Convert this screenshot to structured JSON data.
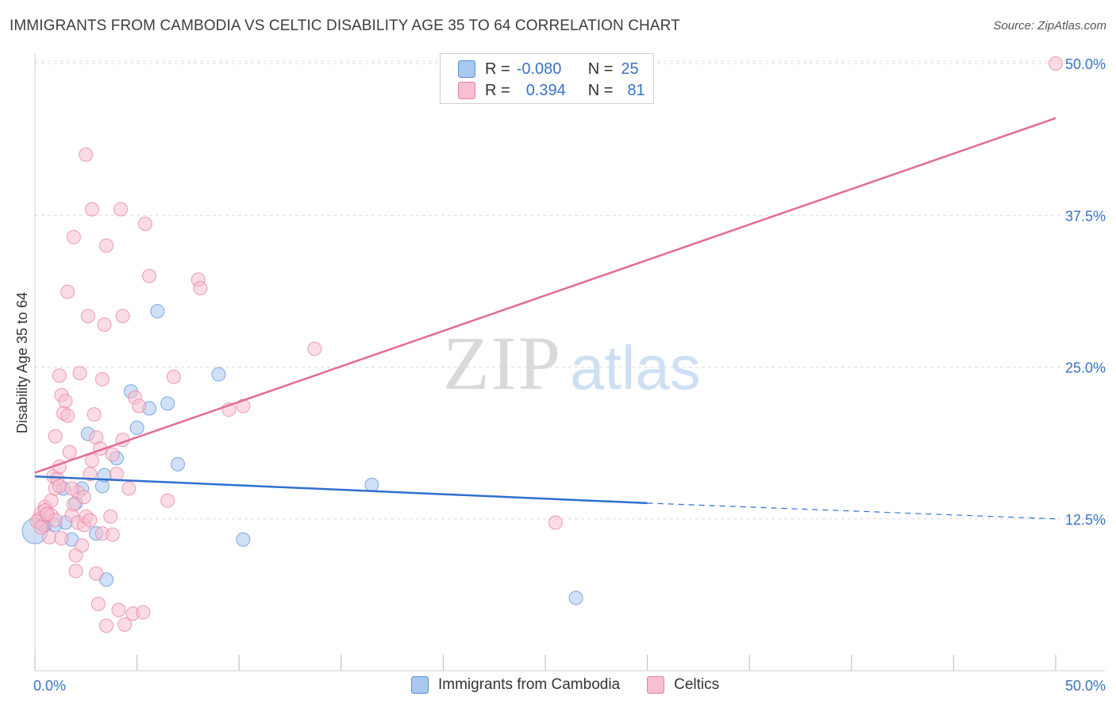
{
  "title": "IMMIGRANTS FROM CAMBODIA VS CELTIC DISABILITY AGE 35 TO 64 CORRELATION CHART",
  "source": "Source: ZipAtlas.com",
  "watermark": {
    "zip": "ZIP",
    "atlas": "atlas"
  },
  "stats_legend": {
    "rows": [
      {
        "r_label": "R =",
        "r_value": "-0.080",
        "n_label": "N =",
        "n_value": "25",
        "color": "#a9c8f0",
        "edge": "#5a8fd6"
      },
      {
        "r_label": "R =",
        "r_value": "0.394",
        "n_label": "N =",
        "n_value": "81",
        "color": "#f7bfd0",
        "edge": "#e67fa1"
      }
    ]
  },
  "bottom_legend": [
    {
      "label": "Immigrants from Cambodia",
      "color": "#a9c8f0",
      "edge": "#5a8fd6"
    },
    {
      "label": "Celtics",
      "color": "#f7bfd0",
      "edge": "#e67fa1"
    }
  ],
  "chart_data": {
    "type": "scatter",
    "title": "IMMIGRANTS FROM CAMBODIA VS CELTIC DISABILITY AGE 35 TO 64 CORRELATION CHART",
    "xlabel": "",
    "ylabel": "Disability Age 35 to 64",
    "xlim": [
      0,
      50
    ],
    "ylim": [
      0,
      50
    ],
    "x_tick_labels": [
      "0.0%",
      "50.0%"
    ],
    "y_ticks": [
      12.5,
      25.0,
      37.5,
      50.0
    ],
    "y_tick_labels": [
      "12.5%",
      "25.0%",
      "37.5%",
      "50.0%"
    ],
    "grid": true,
    "series": [
      {
        "name": "Immigrants from Cambodia",
        "color": "#5a8fd6",
        "fill": "#a9c8f0",
        "trend": {
          "x0": 0,
          "y0": 16.0,
          "x1": 30,
          "y1": 13.8,
          "dash_to": 50,
          "dash_y": 12.5
        },
        "points": [
          [
            0.0,
            11.5,
            1.6
          ],
          [
            0.5,
            12.0,
            0
          ],
          [
            1.0,
            12.0,
            0
          ],
          [
            1.4,
            15.0,
            0
          ],
          [
            1.5,
            12.2,
            0
          ],
          [
            1.8,
            10.8,
            0
          ],
          [
            2.0,
            13.8,
            0
          ],
          [
            2.6,
            19.5,
            0
          ],
          [
            3.0,
            11.3,
            0
          ],
          [
            3.3,
            15.2,
            0
          ],
          [
            3.4,
            16.1,
            0
          ],
          [
            3.5,
            7.5,
            0
          ],
          [
            4.0,
            17.5,
            0
          ],
          [
            2.3,
            15.0,
            0
          ],
          [
            4.7,
            23.0,
            0
          ],
          [
            5.0,
            20.0,
            0
          ],
          [
            5.6,
            21.6,
            0
          ],
          [
            6.0,
            29.6,
            0
          ],
          [
            6.5,
            22.0,
            0
          ],
          [
            7.0,
            17.0,
            0
          ],
          [
            9.0,
            24.4,
            0
          ],
          [
            10.2,
            10.8,
            0
          ],
          [
            16.5,
            15.3,
            0
          ],
          [
            26.5,
            6.0,
            0
          ],
          [
            0.3,
            12.2,
            0
          ]
        ]
      },
      {
        "name": "Celtics",
        "color": "#e67fa1",
        "fill": "#f7bfd0",
        "trend": {
          "x0": 0,
          "y0": 16.3,
          "x1": 50,
          "y1": 45.5
        },
        "points": [
          [
            0.2,
            12.5,
            0
          ],
          [
            0.3,
            13.0,
            0
          ],
          [
            0.4,
            12.0,
            0
          ],
          [
            0.5,
            13.5,
            0
          ],
          [
            0.6,
            12.8,
            0
          ],
          [
            0.7,
            11.0,
            0
          ],
          [
            0.8,
            14.0,
            0
          ],
          [
            0.9,
            16.0,
            0
          ],
          [
            1.0,
            19.3,
            0
          ],
          [
            1.0,
            15.0,
            0
          ],
          [
            1.1,
            15.8,
            0
          ],
          [
            1.2,
            16.8,
            0
          ],
          [
            1.2,
            24.3,
            0
          ],
          [
            1.3,
            22.7,
            0
          ],
          [
            1.4,
            21.2,
            0
          ],
          [
            1.5,
            22.2,
            0
          ],
          [
            1.6,
            21.0,
            0
          ],
          [
            1.7,
            18.0,
            0
          ],
          [
            1.8,
            12.8,
            0
          ],
          [
            1.6,
            31.2,
            0
          ],
          [
            1.9,
            13.7,
            0
          ],
          [
            2.0,
            9.5,
            0
          ],
          [
            2.1,
            12.2,
            0
          ],
          [
            1.9,
            35.7,
            0
          ],
          [
            2.1,
            14.7,
            0
          ],
          [
            2.2,
            24.5,
            0
          ],
          [
            2.3,
            10.3,
            0
          ],
          [
            2.4,
            12.0,
            0
          ],
          [
            2.5,
            12.7,
            0
          ],
          [
            2.6,
            29.2,
            0
          ],
          [
            2.7,
            16.2,
            0
          ],
          [
            2.8,
            17.3,
            0
          ],
          [
            2.9,
            21.1,
            0
          ],
          [
            2.5,
            42.5,
            0
          ],
          [
            3.0,
            19.2,
            0
          ],
          [
            2.8,
            38.0,
            0
          ],
          [
            3.1,
            5.5,
            0
          ],
          [
            3.2,
            18.3,
            0
          ],
          [
            3.3,
            11.3,
            0
          ],
          [
            3.3,
            24.0,
            0
          ],
          [
            3.4,
            28.5,
            0
          ],
          [
            3.5,
            3.7,
            0
          ],
          [
            3.8,
            17.8,
            0
          ],
          [
            3.8,
            11.2,
            0
          ],
          [
            3.5,
            35.0,
            0
          ],
          [
            4.1,
            5.0,
            0
          ],
          [
            4.0,
            16.2,
            0
          ],
          [
            4.2,
            38.0,
            0
          ],
          [
            4.3,
            29.2,
            0
          ],
          [
            4.3,
            19.0,
            0
          ],
          [
            4.4,
            3.8,
            0
          ],
          [
            4.6,
            15.0,
            0
          ],
          [
            4.8,
            4.7,
            0
          ],
          [
            4.9,
            22.5,
            0
          ],
          [
            5.1,
            21.8,
            0
          ],
          [
            5.3,
            4.8,
            0
          ],
          [
            5.4,
            36.8,
            0
          ],
          [
            5.6,
            32.5,
            0
          ],
          [
            6.5,
            14.0,
            0
          ],
          [
            6.8,
            24.2,
            0
          ],
          [
            8.0,
            32.2,
            0
          ],
          [
            8.1,
            31.5,
            0
          ],
          [
            9.5,
            21.5,
            0
          ],
          [
            10.2,
            21.8,
            0
          ],
          [
            13.7,
            26.5,
            0
          ],
          [
            25.5,
            12.2,
            0
          ],
          [
            50.0,
            50.0,
            0
          ],
          [
            0.1,
            12.3,
            0
          ],
          [
            0.3,
            11.8,
            0
          ],
          [
            0.5,
            13.2,
            0
          ],
          [
            0.8,
            12.8,
            0
          ],
          [
            1.0,
            12.4,
            0
          ],
          [
            1.2,
            15.2,
            0
          ],
          [
            2.0,
            8.2,
            0
          ],
          [
            3.0,
            8.0,
            0
          ],
          [
            2.7,
            12.4,
            0
          ],
          [
            2.4,
            14.3,
            0
          ],
          [
            3.7,
            12.7,
            0
          ],
          [
            1.3,
            10.9,
            0
          ],
          [
            0.6,
            12.9,
            0
          ],
          [
            1.8,
            15.0,
            0
          ]
        ]
      }
    ]
  }
}
